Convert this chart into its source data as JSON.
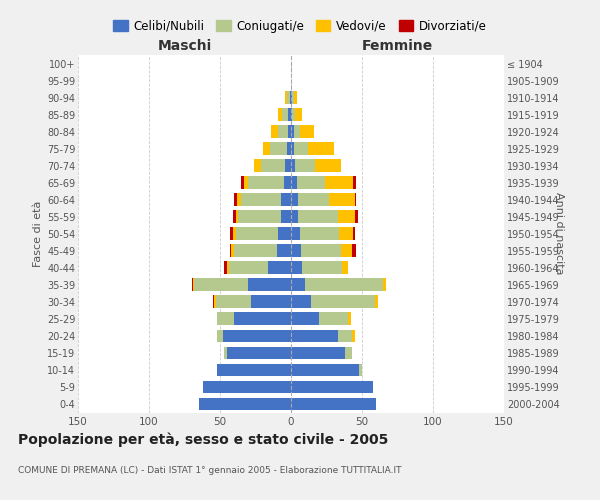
{
  "age_groups": [
    "0-4",
    "5-9",
    "10-14",
    "15-19",
    "20-24",
    "25-29",
    "30-34",
    "35-39",
    "40-44",
    "45-49",
    "50-54",
    "55-59",
    "60-64",
    "65-69",
    "70-74",
    "75-79",
    "80-84",
    "85-89",
    "90-94",
    "95-99",
    "100+"
  ],
  "birth_years": [
    "2000-2004",
    "1995-1999",
    "1990-1994",
    "1985-1989",
    "1980-1984",
    "1975-1979",
    "1970-1974",
    "1965-1969",
    "1960-1964",
    "1955-1959",
    "1950-1954",
    "1945-1949",
    "1940-1944",
    "1935-1939",
    "1930-1934",
    "1925-1929",
    "1920-1924",
    "1915-1919",
    "1910-1914",
    "1905-1909",
    "≤ 1904"
  ],
  "male": {
    "celibi": [
      65,
      62,
      52,
      45,
      48,
      40,
      28,
      30,
      16,
      10,
      9,
      7,
      7,
      5,
      4,
      3,
      2,
      2,
      1,
      0,
      0
    ],
    "coniugati": [
      0,
      0,
      0,
      2,
      4,
      12,
      25,
      38,
      28,
      30,
      30,
      30,
      28,
      25,
      17,
      12,
      7,
      4,
      2,
      0,
      0
    ],
    "vedovi": [
      0,
      0,
      0,
      0,
      0,
      0,
      1,
      1,
      1,
      2,
      2,
      2,
      3,
      3,
      5,
      5,
      5,
      3,
      1,
      0,
      0
    ],
    "divorziati": [
      0,
      0,
      0,
      0,
      0,
      0,
      1,
      1,
      2,
      1,
      2,
      2,
      2,
      2,
      0,
      0,
      0,
      0,
      0,
      0,
      0
    ]
  },
  "female": {
    "nubili": [
      60,
      58,
      48,
      38,
      33,
      20,
      14,
      10,
      8,
      7,
      6,
      5,
      5,
      4,
      3,
      2,
      2,
      1,
      1,
      0,
      0
    ],
    "coniugate": [
      0,
      0,
      2,
      5,
      10,
      20,
      45,
      55,
      28,
      28,
      28,
      28,
      22,
      20,
      14,
      10,
      4,
      2,
      1,
      0,
      0
    ],
    "vedove": [
      0,
      0,
      0,
      0,
      2,
      2,
      2,
      2,
      4,
      8,
      10,
      12,
      18,
      20,
      18,
      18,
      10,
      5,
      2,
      0,
      0
    ],
    "divorziate": [
      0,
      0,
      0,
      0,
      0,
      0,
      0,
      0,
      0,
      3,
      1,
      2,
      1,
      2,
      0,
      0,
      0,
      0,
      0,
      0,
      0
    ]
  },
  "colors": {
    "celibi": "#4472c4",
    "coniugati": "#b5c98e",
    "vedovi": "#ffc000",
    "divorziati": "#c00000"
  },
  "xlim": 150,
  "title": "Popolazione per età, sesso e stato civile - 2005",
  "subtitle": "COMUNE DI PREMANA (LC) - Dati ISTAT 1° gennaio 2005 - Elaborazione TUTTITALIA.IT",
  "ylabel_left": "Fasce di età",
  "ylabel_right": "Anni di nascita",
  "label_maschi": "Maschi",
  "label_femmine": "Femmine",
  "legend_labels": [
    "Celibi/Nubili",
    "Coniugati/e",
    "Vedovi/e",
    "Divorziati/e"
  ],
  "bg_color": "#f0f0f0",
  "plot_bg": "#ffffff"
}
